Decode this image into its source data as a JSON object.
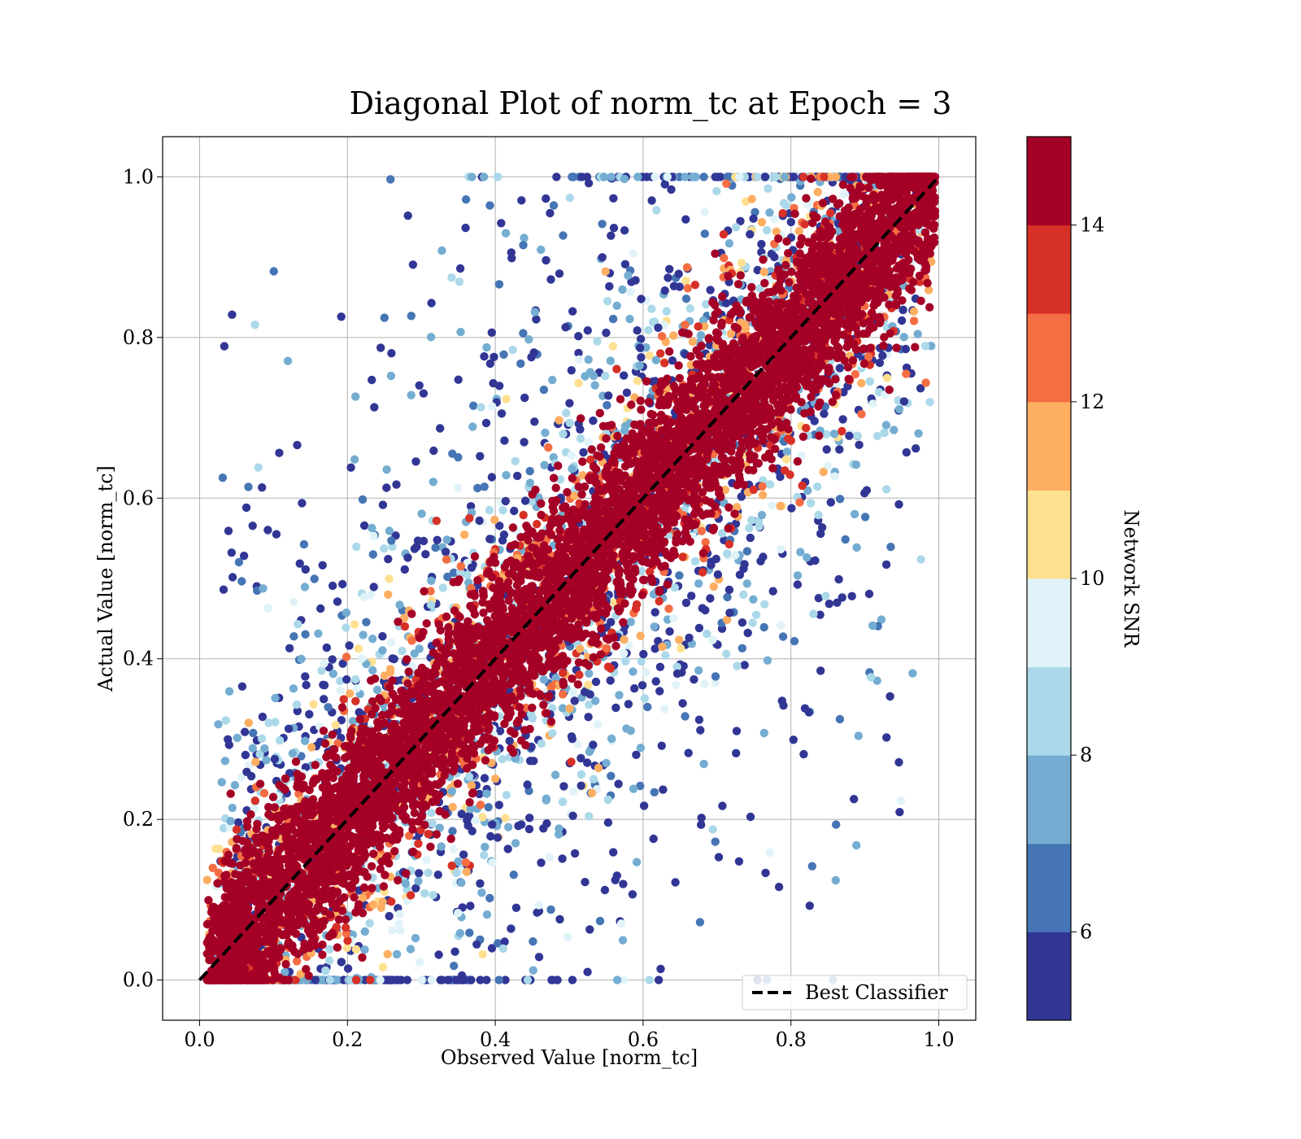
{
  "chart_data": {
    "type": "scatter",
    "title": "Diagonal Plot of norm_tc at Epoch = 3",
    "xlabel": "Observed Value [norm_tc]",
    "ylabel": "Actual Value [norm_tc]",
    "xlim": [
      -0.05,
      1.05
    ],
    "ylim": [
      -0.05,
      1.05
    ],
    "xticks": [
      "0.0",
      "0.2",
      "0.4",
      "0.6",
      "0.8",
      "1.0"
    ],
    "yticks": [
      "0.0",
      "0.2",
      "0.4",
      "0.6",
      "0.8",
      "1.0"
    ],
    "grid": true,
    "legend": {
      "placement": "lower-right",
      "entries": [
        {
          "label": "Best Classifier",
          "style": "black dashed line"
        }
      ]
    },
    "reference_line": {
      "x": [
        0,
        1
      ],
      "y": [
        0,
        1
      ],
      "label": "Best Classifier"
    },
    "colorbar": {
      "label": "Network SNR",
      "range": [
        5,
        15
      ],
      "ticks": [
        "6",
        "8",
        "10",
        "12",
        "14"
      ],
      "tick_values": [
        6,
        8,
        10,
        12,
        14
      ],
      "colors": [
        "#313695",
        "#4575b4",
        "#74add1",
        "#abd9e9",
        "#e0f3f8",
        "#fee090",
        "#fdae61",
        "#f46d43",
        "#d73027",
        "#a50026"
      ]
    },
    "description": "Dense band of high-SNR (>=14) points along y=x; lower-SNR points scattered broadly within 0 to 1 on both axes"
  }
}
